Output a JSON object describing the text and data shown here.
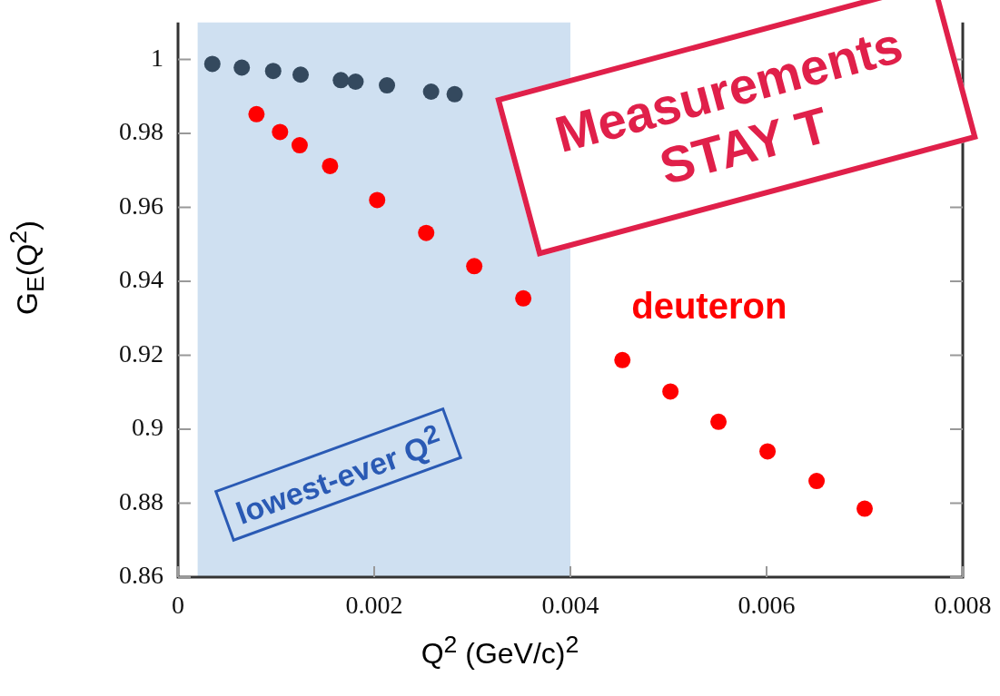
{
  "chart_data": {
    "type": "scatter",
    "xlabel": "Q$^{2}$ (GeV/c)$^{2}$",
    "ylabel": "G$_{E}$(Q$^{2}$)",
    "xlim": [
      0,
      0.008
    ],
    "xticks": [
      0,
      0.002,
      0.004,
      0.006,
      0.008
    ],
    "ylim": [
      0.86,
      1.01
    ],
    "yticks": [
      0.86,
      0.88,
      0.9,
      0.92,
      0.94,
      0.96,
      0.98,
      1
    ],
    "grid": false,
    "legend": false,
    "marker": "circle",
    "bands": [
      {
        "axis": "x",
        "from": 0.0002,
        "to": 0.004,
        "label": "lowest-ever Q$^{2}$",
        "color": "#cfe0f1"
      }
    ],
    "annotations": [
      "Measurements",
      "STAY T"
    ],
    "series": [
      {
        "color": "#34495e",
        "x": [
          0.00035,
          0.00065,
          0.00097,
          0.00125,
          0.00166,
          0.00181,
          0.00213,
          0.00258,
          0.00282
        ],
        "values": [
          0.9988,
          0.9978,
          0.9969,
          0.9959,
          0.9944,
          0.994,
          0.993,
          0.9913,
          0.9906
        ]
      },
      {
        "name": "deuteron",
        "color": "#ff0000",
        "x": [
          0.0008,
          0.00104,
          0.00124,
          0.00155,
          0.00203,
          0.00253,
          0.00302,
          0.00352,
          0.00453,
          0.00502,
          0.00551,
          0.00601,
          0.00651,
          0.007
        ],
        "values": [
          0.9852,
          0.9804,
          0.9768,
          0.9712,
          0.962,
          0.9531,
          0.9441,
          0.9354,
          0.9187,
          0.9102,
          0.902,
          0.894,
          0.886,
          0.8785
        ]
      }
    ]
  }
}
